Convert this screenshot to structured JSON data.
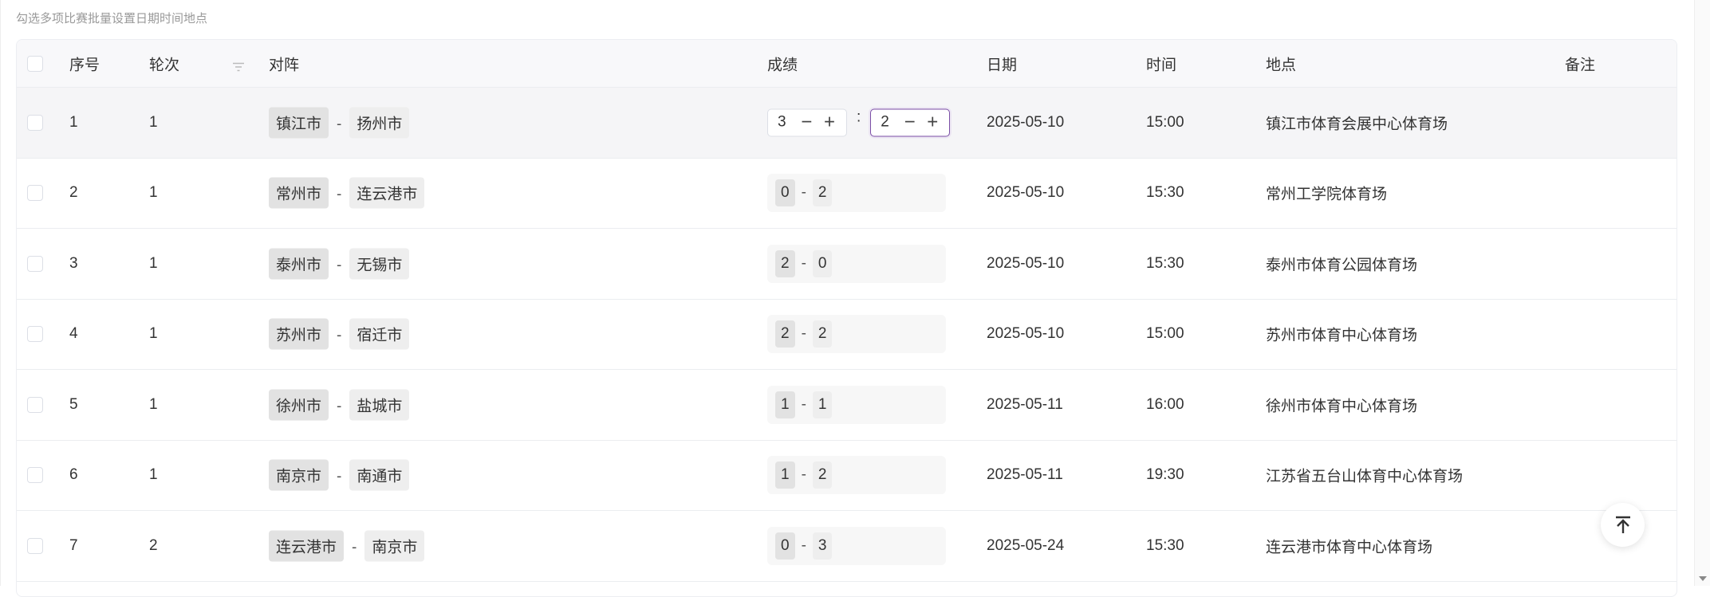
{
  "caption": "勾选多项比赛批量设置日期时间地点",
  "columns": [
    "序号",
    "轮次",
    "对阵",
    "成绩",
    "日期",
    "时间",
    "地点",
    "备注"
  ],
  "editing_row": {
    "index": "1",
    "round": "1",
    "home": "镇江市",
    "away": "扬州市",
    "home_score": "3",
    "away_score": "2",
    "separator": ":",
    "stepper": "− +",
    "date": "2025-05-10",
    "time": "15:00",
    "venue": "镇江市体育会展中心体育场",
    "note": ""
  },
  "rows": [
    {
      "index": "2",
      "round": "1",
      "home": "常州市",
      "away": "连云港市",
      "home_score": "0",
      "away_score": "2",
      "date": "2025-05-10",
      "time": "15:30",
      "venue": "常州工学院体育场",
      "note": ""
    },
    {
      "index": "3",
      "round": "1",
      "home": "泰州市",
      "away": "无锡市",
      "home_score": "2",
      "away_score": "0",
      "date": "2025-05-10",
      "time": "15:30",
      "venue": "泰州市体育公园体育场",
      "note": ""
    },
    {
      "index": "4",
      "round": "1",
      "home": "苏州市",
      "away": "宿迁市",
      "home_score": "2",
      "away_score": "2",
      "date": "2025-05-10",
      "time": "15:00",
      "venue": "苏州市体育中心体育场",
      "note": ""
    },
    {
      "index": "5",
      "round": "1",
      "home": "徐州市",
      "away": "盐城市",
      "home_score": "1",
      "away_score": "1",
      "date": "2025-05-11",
      "time": "16:00",
      "venue": "徐州市体育中心体育场",
      "note": ""
    },
    {
      "index": "6",
      "round": "1",
      "home": "南京市",
      "away": "南通市",
      "home_score": "1",
      "away_score": "2",
      "date": "2025-05-11",
      "time": "19:30",
      "venue": "江苏省五台山体育中心体育场",
      "note": ""
    },
    {
      "index": "7",
      "round": "2",
      "home": "连云港市",
      "away": "南京市",
      "home_score": "0",
      "away_score": "3",
      "date": "2025-05-24",
      "time": "15:30",
      "venue": "连云港市体育中心体育场",
      "note": ""
    }
  ],
  "dash": "-",
  "colors": {
    "focus_border": "#7b4fa6",
    "home_tag": "#e2e2e2",
    "away_tag": "#eeeeee"
  },
  "icons": {
    "filter": "filter-icon",
    "back_to_top": "arrow-up-to-line-icon"
  }
}
